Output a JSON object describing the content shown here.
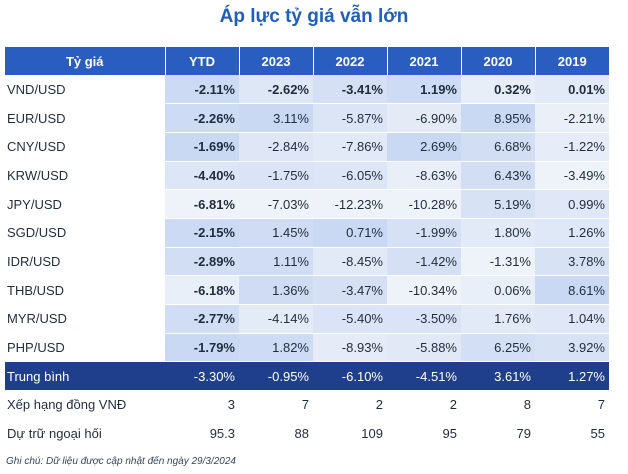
{
  "title": "Áp lực tỷ giá vẫn lớn",
  "table": {
    "headers": [
      "Tỷ giá",
      "YTD",
      "2023",
      "2022",
      "2021",
      "2020",
      "2019"
    ],
    "rows": [
      {
        "name": "VND/USD",
        "values": [
          "-2.11%",
          "-2.62%",
          "-3.41%",
          "1.19%",
          "0.32%",
          "0.01%"
        ],
        "bold": [
          true,
          true,
          true,
          true,
          true,
          true
        ]
      },
      {
        "name": "EUR/USD",
        "values": [
          "-2.26%",
          "3.11%",
          "-5.87%",
          "-6.90%",
          "8.95%",
          "-2.21%"
        ],
        "bold": [
          true,
          false,
          false,
          false,
          false,
          false
        ]
      },
      {
        "name": "CNY/USD",
        "values": [
          "-1.69%",
          "-2.84%",
          "-7.86%",
          "2.69%",
          "6.68%",
          "-1.22%"
        ],
        "bold": [
          true,
          false,
          false,
          false,
          false,
          false
        ]
      },
      {
        "name": "KRW/USD",
        "values": [
          "-4.40%",
          "-1.75%",
          "-6.05%",
          "-8.63%",
          "6.43%",
          "-3.49%"
        ],
        "bold": [
          true,
          false,
          false,
          false,
          false,
          false
        ]
      },
      {
        "name": "JPY/USD",
        "values": [
          "-6.81%",
          "-7.03%",
          "-12.23%",
          "-10.28%",
          "5.19%",
          "0.99%"
        ],
        "bold": [
          true,
          false,
          false,
          false,
          false,
          false
        ]
      },
      {
        "name": "SGD/USD",
        "values": [
          "-2.15%",
          "1.45%",
          "0.71%",
          "-1.99%",
          "1.80%",
          "1.26%"
        ],
        "bold": [
          true,
          false,
          false,
          false,
          false,
          false
        ]
      },
      {
        "name": "IDR/USD",
        "values": [
          "-2.89%",
          "1.11%",
          "-8.45%",
          "-1.42%",
          "-1.31%",
          "3.78%"
        ],
        "bold": [
          true,
          false,
          false,
          false,
          false,
          false
        ]
      },
      {
        "name": "THB/USD",
        "values": [
          "-6.18%",
          "1.36%",
          "-3.47%",
          "-10.34%",
          "0.06%",
          "8.61%"
        ],
        "bold": [
          true,
          false,
          false,
          false,
          false,
          false
        ]
      },
      {
        "name": "MYR/USD",
        "values": [
          "-2.77%",
          "-4.14%",
          "-5.40%",
          "-3.50%",
          "1.76%",
          "1.04%"
        ],
        "bold": [
          true,
          false,
          false,
          false,
          false,
          false
        ]
      },
      {
        "name": "PHP/USD",
        "values": [
          "-1.79%",
          "1.82%",
          "-8.93%",
          "-5.88%",
          "6.25%",
          "3.92%"
        ],
        "bold": [
          true,
          false,
          false,
          false,
          false,
          false
        ]
      }
    ],
    "average": {
      "name": "Trung bình",
      "values": [
        "-3.30%",
        "-0.95%",
        "-6.10%",
        "-4.51%",
        "3.61%",
        "1.27%"
      ]
    },
    "ranking": {
      "name": "Xếp hạng đồng VNĐ",
      "values": [
        "3",
        "7",
        "2",
        "2",
        "8",
        "7"
      ]
    },
    "reserves": {
      "name": "Dự trữ ngoại hối",
      "values": [
        "95.3",
        "88",
        "109",
        "95",
        "79",
        "55"
      ]
    }
  },
  "note": "Ghi chú: Dữ liệu được cập nhật đến ngày 29/3/2024",
  "colors": {
    "header_bg": "#2a5dc0",
    "average_bg": "#1f3f8c",
    "title": "#1f5dbf",
    "heat_high": "#c9d8f3",
    "heat_low": "#eef2f9"
  }
}
